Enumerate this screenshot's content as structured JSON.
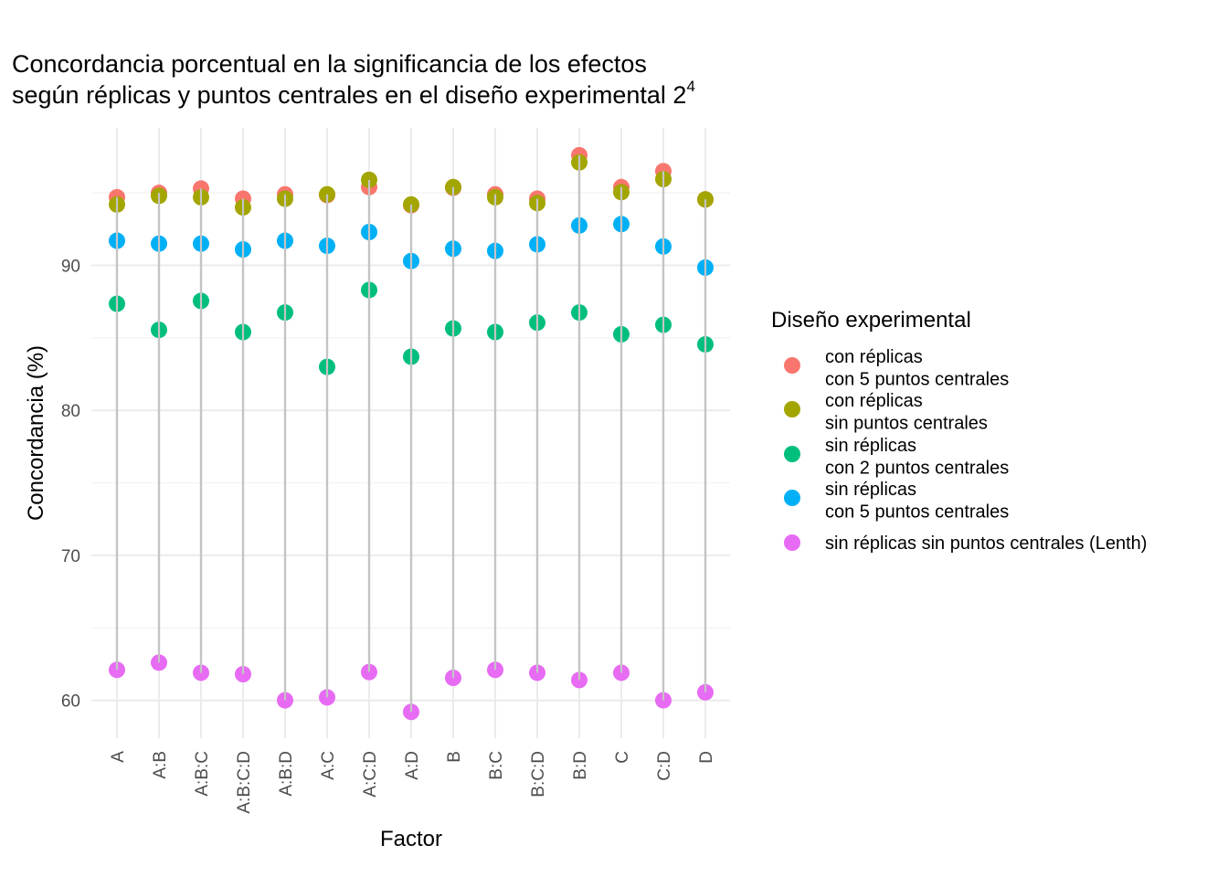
{
  "chart_data": {
    "type": "scatter",
    "title_line1": "Concordancia porcentual en la significancia de los efectos",
    "title_line2": "según réplicas y puntos centrales en el diseño experimental 2",
    "title_superscript": "4",
    "xlabel": "Factor",
    "ylabel": "Concordancia (%)",
    "ylim": [
      57.5,
      99.6
    ],
    "yticks": [
      60,
      70,
      80,
      90
    ],
    "ytick_labels": [
      "60",
      "70",
      "80",
      "90"
    ],
    "grid": true,
    "legend_position": "right",
    "legend_title": "Diseño experimental",
    "categories": [
      "A",
      "A:B",
      "A:B:C",
      "A:B:C:D",
      "A:B:D",
      "A:C",
      "A:C:D",
      "A:D",
      "B",
      "B:C",
      "B:C:D",
      "B:D",
      "C",
      "C:D",
      "D"
    ],
    "series": [
      {
        "name": "con réplicas\ncon 5 puntos centrales",
        "label_lines": [
          "con réplicas",
          "con 5 puntos centrales"
        ],
        "color": "#F8766D",
        "values": [
          94.7,
          95.0,
          95.3,
          94.6,
          94.9,
          94.85,
          95.4,
          94.15,
          95.35,
          94.9,
          94.6,
          97.6,
          95.4,
          96.5,
          94.55
        ]
      },
      {
        "name": "con réplicas\nsin puntos centrales",
        "label_lines": [
          "con réplicas",
          "sin puntos centrales"
        ],
        "color": "#A3A500",
        "values": [
          94.2,
          94.8,
          94.7,
          94.0,
          94.6,
          94.9,
          95.9,
          94.2,
          95.4,
          94.7,
          94.3,
          97.1,
          95.05,
          95.95,
          94.55
        ]
      },
      {
        "name": "sin réplicas\ncon 2 puntos centrales",
        "label_lines": [
          "sin réplicas",
          "con 2 puntos centrales"
        ],
        "color": "#00BF7D",
        "values": [
          87.35,
          85.55,
          87.55,
          85.4,
          86.75,
          83.0,
          88.3,
          83.7,
          85.65,
          85.4,
          86.05,
          86.75,
          85.25,
          85.9,
          84.55
        ]
      },
      {
        "name": "sin réplicas\ncon 5 puntos centrales",
        "label_lines": [
          "sin réplicas",
          "con 5 puntos centrales"
        ],
        "color": "#00B0F6",
        "values": [
          91.7,
          91.5,
          91.5,
          91.1,
          91.7,
          91.35,
          92.3,
          90.3,
          91.15,
          91.0,
          91.45,
          92.75,
          92.85,
          91.3,
          89.85
        ]
      },
      {
        "name": "sin réplicas sin puntos centrales (Lenth)",
        "label_lines": [
          "sin réplicas sin puntos centrales (Lenth)"
        ],
        "color": "#E76BF3",
        "values": [
          62.1,
          62.6,
          61.9,
          61.8,
          60.0,
          60.2,
          61.95,
          59.2,
          61.55,
          62.1,
          61.9,
          61.4,
          61.9,
          60.0,
          60.55
        ]
      }
    ]
  }
}
